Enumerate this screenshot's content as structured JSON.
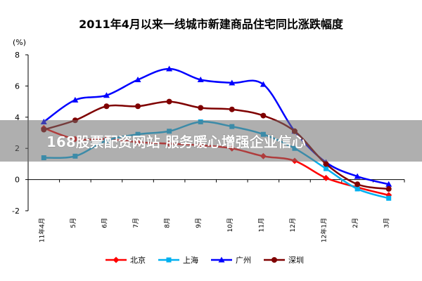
{
  "chart_data": {
    "type": "line",
    "title": "2011年4月以来一线城市新建商品住宅同比涨跌幅度",
    "ylabel": "(%)",
    "xlabel": "",
    "ylim": [
      -2,
      8
    ],
    "yticks": [
      8,
      6,
      4,
      2,
      0,
      -2
    ],
    "categories": [
      "11年4月",
      "5月",
      "6月",
      "7月",
      "8月",
      "9月",
      "10月",
      "11月",
      "12月",
      "12年1月",
      "2月",
      "3月"
    ],
    "series": [
      {
        "name": "北京",
        "color": "#ff0000",
        "marker": "diamond",
        "values": [
          3.3,
          2.6,
          2.6,
          2.4,
          2.3,
          2.2,
          2.0,
          1.5,
          1.2,
          0.1,
          -0.5,
          -1.0
        ]
      },
      {
        "name": "上海",
        "color": "#00b0f0",
        "marker": "square",
        "values": [
          1.4,
          1.5,
          2.5,
          2.9,
          3.1,
          3.7,
          3.4,
          2.9,
          2.0,
          0.7,
          -0.6,
          -1.2
        ]
      },
      {
        "name": "广州",
        "color": "#0000ff",
        "marker": "triangle",
        "values": [
          3.7,
          5.1,
          5.4,
          6.4,
          7.1,
          6.4,
          6.2,
          6.1,
          3.1,
          1.1,
          0.2,
          -0.3
        ]
      },
      {
        "name": "深圳",
        "color": "#7f0000",
        "marker": "circle",
        "values": [
          3.2,
          3.8,
          4.7,
          4.7,
          5.0,
          4.6,
          4.5,
          4.1,
          3.1,
          1.0,
          -0.3,
          -0.6
        ]
      }
    ],
    "grid": false,
    "legend": "bottom"
  },
  "banner": {
    "text": "168股票配资网站 服务暖心增强企业信心"
  }
}
